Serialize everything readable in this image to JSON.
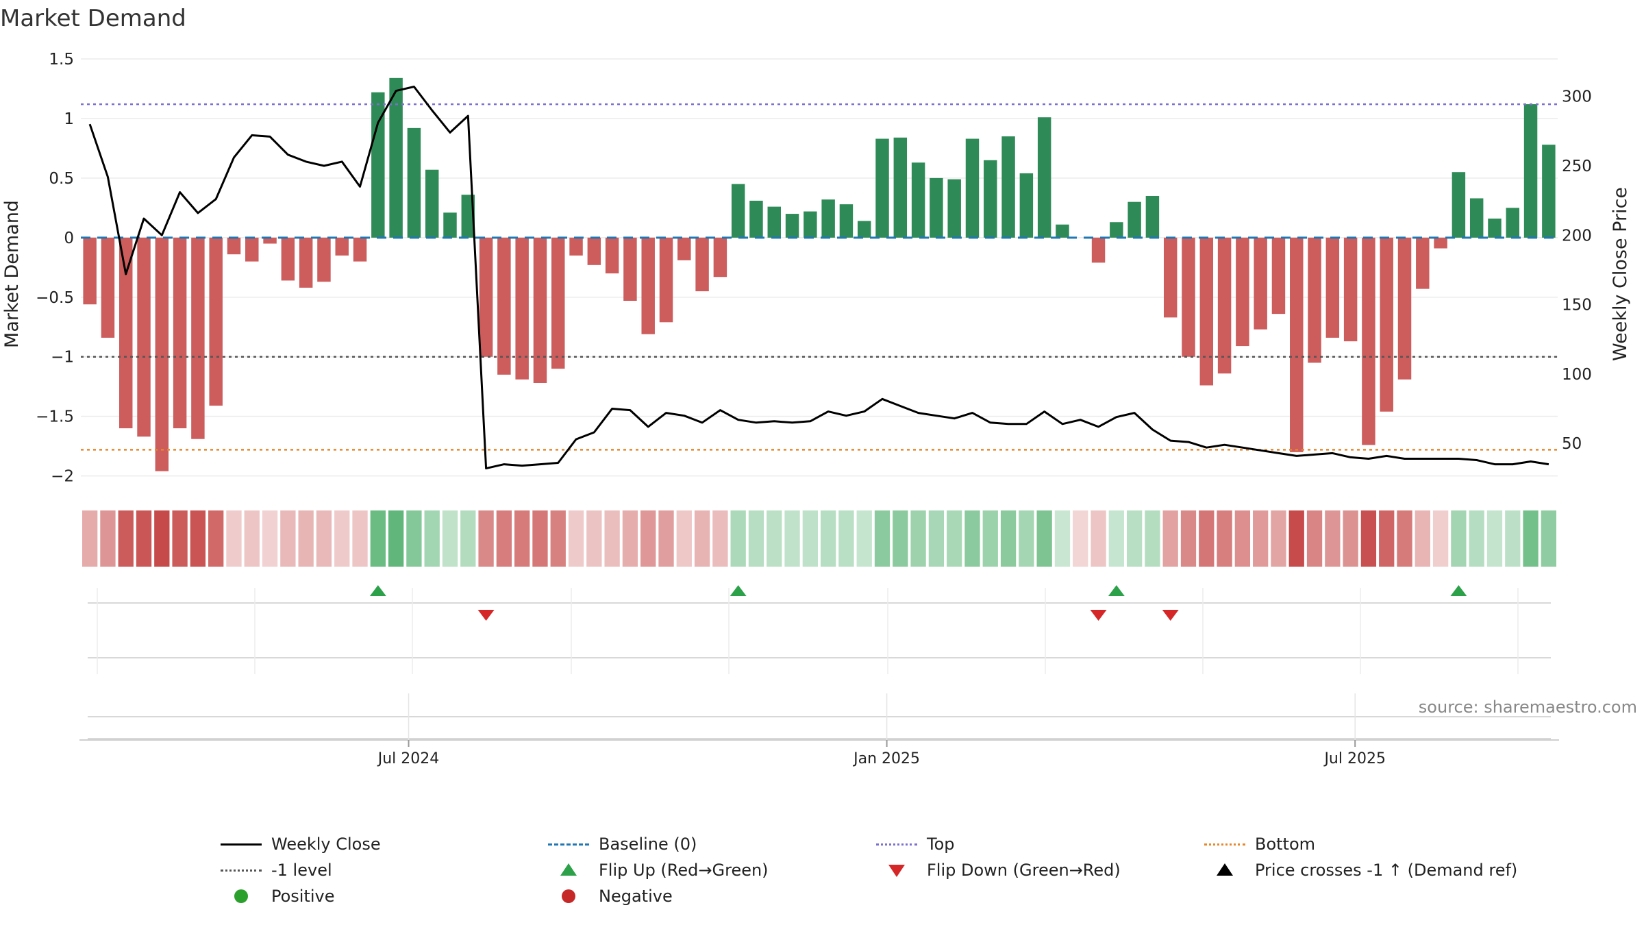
{
  "chart_data": {
    "type": "bar",
    "title": "Market Demand",
    "ylabel": "Market Demand",
    "ylabel_right": "Weekly Close Price",
    "ylim": [
      -2.1,
      1.5
    ],
    "ylim_right": [
      18,
      327
    ],
    "yticks": [
      1.5,
      1,
      0.5,
      0,
      -0.5,
      -1,
      -1.5,
      -2
    ],
    "ytick_labels": [
      "1.5",
      "1",
      "0.5",
      "0",
      "−0.5",
      "−1",
      "−1.5",
      "−2"
    ],
    "yticks_right": [
      300,
      250,
      200,
      150,
      100,
      50
    ],
    "xtick_labels": [
      "Jul 2024",
      "Jan 2025",
      "Jul 2025"
    ],
    "xtick_positions": [
      18.2,
      44.75,
      70.75
    ],
    "reference_lines": {
      "top": 1.12,
      "bottom": -1.78,
      "minus_one": -1.0,
      "baseline": 0
    },
    "demand": [
      -0.56,
      -0.84,
      -1.6,
      -1.67,
      -1.96,
      -1.6,
      -1.69,
      -1.41,
      -0.14,
      -0.2,
      -0.05,
      -0.36,
      -0.42,
      -0.37,
      -0.15,
      -0.2,
      1.22,
      1.34,
      0.92,
      0.57,
      0.21,
      0.36,
      -1.0,
      -1.15,
      -1.19,
      -1.22,
      -1.1,
      -0.15,
      -0.23,
      -0.3,
      -0.53,
      -0.81,
      -0.71,
      -0.19,
      -0.45,
      -0.33,
      0.45,
      0.31,
      0.26,
      0.2,
      0.22,
      0.32,
      0.28,
      0.14,
      0.83,
      0.84,
      0.63,
      0.5,
      0.49,
      0.83,
      0.65,
      0.85,
      0.54,
      1.01,
      0.11,
      0.0,
      -0.21,
      0.13,
      0.3,
      0.35,
      -0.67,
      -1.0,
      -1.24,
      -1.14,
      -0.91,
      -0.77,
      -0.64,
      -1.8,
      -1.05,
      -0.84,
      -0.87,
      -1.74,
      -1.46,
      -1.19,
      -0.43,
      -0.09,
      0.55,
      0.33,
      0.16,
      0.25,
      1.12,
      0.78
    ],
    "weekly_close": [
      280,
      242,
      172,
      212,
      200,
      231,
      216,
      226,
      256,
      272,
      271,
      258,
      253,
      250,
      253,
      235,
      281,
      304,
      307,
      290,
      274,
      286,
      32,
      35,
      34,
      35,
      36,
      53,
      58,
      75,
      74,
      62,
      72,
      70,
      65,
      74,
      67,
      65,
      66,
      65,
      66,
      73,
      70,
      73,
      82,
      77,
      72,
      70,
      68,
      72,
      65,
      64,
      64,
      73,
      64,
      67,
      62,
      69,
      72,
      60,
      52,
      51,
      47,
      49,
      47,
      45,
      43,
      41,
      42,
      43,
      40,
      39,
      41,
      39,
      39,
      39,
      39,
      38,
      35,
      35,
      37,
      35
    ],
    "heat_strip": "one colored cell per week; green for positive demand, red for negative, saturation by magnitude",
    "flip_up_weeks": [
      16,
      36,
      57,
      76
    ],
    "flip_down_weeks": [
      22,
      56,
      60
    ],
    "source_note": "source: sharemaestro.com"
  },
  "legend": {
    "weekly_close": "Weekly Close",
    "baseline": "Baseline (0)",
    "top": "Top",
    "bottom": "Bottom",
    "minus_one": "-1 level",
    "flip_up": "Flip Up (Red→Green)",
    "flip_down": "Flip Down (Green→Red)",
    "price_cross": "Price crosses -1 ↑ (Demand ref)",
    "positive": "Positive",
    "negative": "Negative"
  },
  "colors": {
    "positive_bar": "#2e8b57",
    "negative_bar": "#cd5c5c",
    "close_line": "#000000",
    "baseline": "#1f77b4",
    "top": "#7b6fd0",
    "bottom": "#e8862a",
    "minus_one": "#555555",
    "flip_up": "#2ca14a",
    "flip_down": "#d62728"
  }
}
